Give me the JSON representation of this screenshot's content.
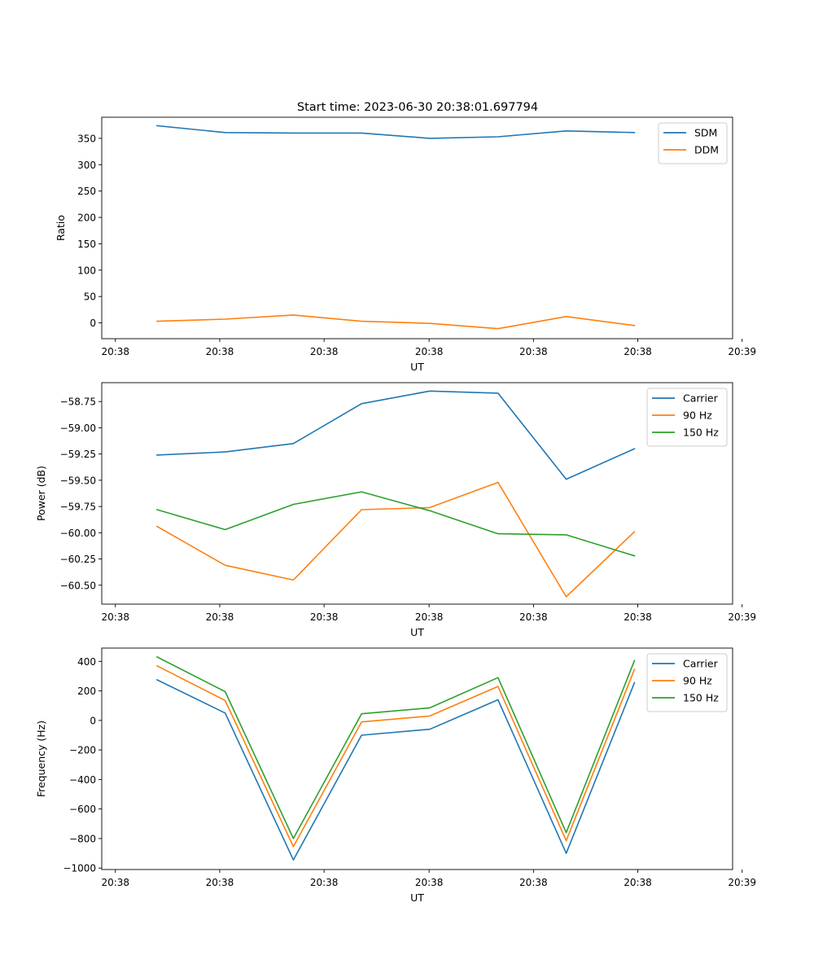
{
  "figure": {
    "title": "Start time: 2023-06-30 20:38:01.697794"
  },
  "chart_data": [
    {
      "type": "line",
      "title": "Start time: 2023-06-30 20:38:01.697794",
      "xlabel": "UT",
      "ylabel": "Ratio",
      "x": [
        1,
        2,
        3,
        4,
        5,
        6,
        7,
        8
      ],
      "xlim": [
        0.19,
        9.44
      ],
      "x_ticks": [
        0.39,
        1.92,
        3.45,
        4.99,
        6.52,
        8.05,
        9.58
      ],
      "x_tick_labels": [
        "20:38",
        "20:38",
        "20:38",
        "20:38",
        "20:38",
        "20:38",
        "20:39"
      ],
      "ylim": [
        -30,
        390
      ],
      "y_ticks": [
        0,
        50,
        100,
        150,
        200,
        250,
        300,
        350
      ],
      "y_tick_labels": [
        "0",
        "50",
        "100",
        "150",
        "200",
        "250",
        "300",
        "350"
      ],
      "legend_position": "top-right",
      "grid": false,
      "series": [
        {
          "name": "SDM",
          "color": "#1f77b4",
          "values": [
            374,
            361,
            360,
            360,
            350,
            353,
            364,
            361
          ]
        },
        {
          "name": "DDM",
          "color": "#ff7f0e",
          "values": [
            3,
            7,
            15,
            3,
            -1,
            -11,
            12,
            -5
          ]
        }
      ]
    },
    {
      "type": "line",
      "xlabel": "UT",
      "ylabel": "Power (dB)",
      "x": [
        1,
        2,
        3,
        4,
        5,
        6,
        7,
        8
      ],
      "xlim": [
        0.19,
        9.44
      ],
      "x_ticks": [
        0.39,
        1.92,
        3.45,
        4.99,
        6.52,
        8.05,
        9.58
      ],
      "x_tick_labels": [
        "20:38",
        "20:38",
        "20:38",
        "20:38",
        "20:38",
        "20:38",
        "20:39"
      ],
      "ylim": [
        -60.68,
        -58.57
      ],
      "y_ticks": [
        -60.5,
        -60.25,
        -60.0,
        -59.75,
        -59.5,
        -59.25,
        -59.0,
        -58.75
      ],
      "y_tick_labels": [
        "−60.50",
        "−60.25",
        "−60.00",
        "−59.75",
        "−59.50",
        "−59.25",
        "−59.00",
        "−58.75"
      ],
      "legend_position": "top-right",
      "grid": false,
      "series": [
        {
          "name": "Carrier",
          "color": "#1f77b4",
          "values": [
            -59.26,
            -59.23,
            -59.15,
            -58.77,
            -58.65,
            -58.67,
            -59.49,
            -59.2
          ]
        },
        {
          "name": "90 Hz",
          "color": "#ff7f0e",
          "values": [
            -59.94,
            -60.31,
            -60.45,
            -59.78,
            -59.76,
            -59.52,
            -60.61,
            -59.99
          ]
        },
        {
          "name": "150 Hz",
          "color": "#2ca02c",
          "values": [
            -59.78,
            -59.97,
            -59.73,
            -59.61,
            -59.79,
            -60.01,
            -60.02,
            -60.22
          ]
        }
      ]
    },
    {
      "type": "line",
      "xlabel": "UT",
      "ylabel": "Frequency (Hz)",
      "x": [
        1,
        2,
        3,
        4,
        5,
        6,
        7,
        8
      ],
      "xlim": [
        0.19,
        9.44
      ],
      "x_ticks": [
        0.39,
        1.92,
        3.45,
        4.99,
        6.52,
        8.05,
        9.58
      ],
      "x_tick_labels": [
        "20:38",
        "20:38",
        "20:38",
        "20:38",
        "20:38",
        "20:38",
        "20:39"
      ],
      "ylim": [
        -1010,
        490
      ],
      "y_ticks": [
        -1000,
        -800,
        -600,
        -400,
        -200,
        0,
        200,
        400
      ],
      "y_tick_labels": [
        "−1000",
        "−800",
        "−600",
        "−400",
        "−200",
        "0",
        "200",
        "400"
      ],
      "legend_position": "top-right",
      "grid": false,
      "series": [
        {
          "name": "Carrier",
          "color": "#1f77b4",
          "values": [
            275,
            50,
            -945,
            -100,
            -60,
            140,
            -900,
            255
          ]
        },
        {
          "name": "90 Hz",
          "color": "#ff7f0e",
          "values": [
            370,
            135,
            -855,
            -10,
            30,
            230,
            -815,
            345
          ]
        },
        {
          "name": "150 Hz",
          "color": "#2ca02c",
          "values": [
            430,
            195,
            -800,
            45,
            85,
            290,
            -760,
            405
          ]
        }
      ]
    }
  ]
}
